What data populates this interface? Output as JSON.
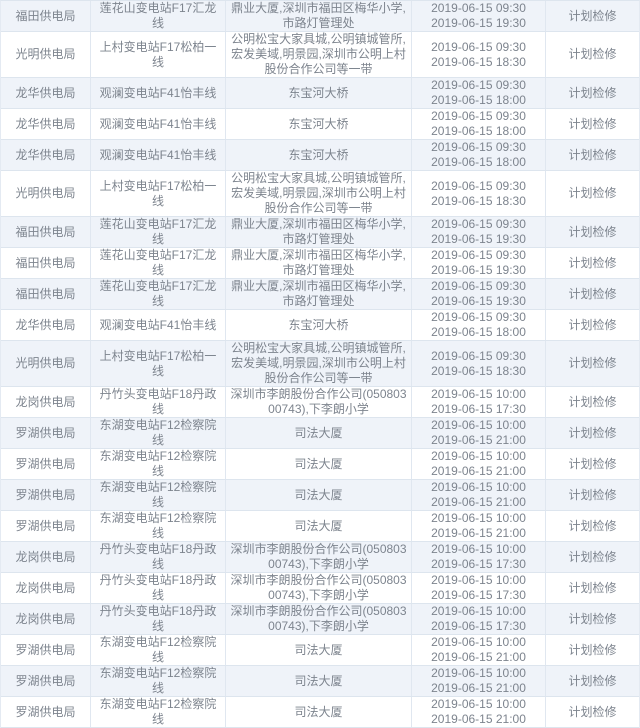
{
  "colors": {
    "row_stripe": "#eff3f9",
    "row_border": "#dde5ee",
    "text": "#7d848e"
  },
  "table": {
    "type_label_all_rows": "计划检修",
    "rows": [
      {
        "bureau": "福田供电局",
        "line": "莲花山变电站F17汇龙线",
        "area": "鼎业大厦,深圳市福田区梅华小学,市路灯管理处",
        "time_start": "2019-06-15 09:30",
        "time_end": "2019-06-15 19:30",
        "type": "计划检修"
      },
      {
        "bureau": "光明供电局",
        "line": "上村变电站F17松柏一线",
        "area": "公明松宝大家具城,公明镇城管所,宏发美域,明景园,深圳市公明上村股份合作公司等一带",
        "time_start": "2019-06-15 09:30",
        "time_end": "2019-06-15 18:30",
        "type": "计划检修"
      },
      {
        "bureau": "龙华供电局",
        "line": "观澜变电站F41怡丰线",
        "area": "东宝河大桥",
        "time_start": "2019-06-15 09:30",
        "time_end": "2019-06-15 18:00",
        "type": "计划检修"
      },
      {
        "bureau": "龙华供电局",
        "line": "观澜变电站F41怡丰线",
        "area": "东宝河大桥",
        "time_start": "2019-06-15 09:30",
        "time_end": "2019-06-15 18:00",
        "type": "计划检修"
      },
      {
        "bureau": "龙华供电局",
        "line": "观澜变电站F41怡丰线",
        "area": "东宝河大桥",
        "time_start": "2019-06-15 09:30",
        "time_end": "2019-06-15 18:00",
        "type": "计划检修"
      },
      {
        "bureau": "光明供电局",
        "line": "上村变电站F17松柏一线",
        "area": "公明松宝大家具城,公明镇城管所,宏发美域,明景园,深圳市公明上村股份合作公司等一带",
        "time_start": "2019-06-15 09:30",
        "time_end": "2019-06-15 18:30",
        "type": "计划检修"
      },
      {
        "bureau": "福田供电局",
        "line": "莲花山变电站F17汇龙线",
        "area": "鼎业大厦,深圳市福田区梅华小学,市路灯管理处",
        "time_start": "2019-06-15 09:30",
        "time_end": "2019-06-15 19:30",
        "type": "计划检修"
      },
      {
        "bureau": "福田供电局",
        "line": "莲花山变电站F17汇龙线",
        "area": "鼎业大厦,深圳市福田区梅华小学,市路灯管理处",
        "time_start": "2019-06-15 09:30",
        "time_end": "2019-06-15 19:30",
        "type": "计划检修"
      },
      {
        "bureau": "福田供电局",
        "line": "莲花山变电站F17汇龙线",
        "area": "鼎业大厦,深圳市福田区梅华小学,市路灯管理处",
        "time_start": "2019-06-15 09:30",
        "time_end": "2019-06-15 19:30",
        "type": "计划检修"
      },
      {
        "bureau": "龙华供电局",
        "line": "观澜变电站F41怡丰线",
        "area": "东宝河大桥",
        "time_start": "2019-06-15 09:30",
        "time_end": "2019-06-15 18:00",
        "type": "计划检修"
      },
      {
        "bureau": "光明供电局",
        "line": "上村变电站F17松柏一线",
        "area": "公明松宝大家具城,公明镇城管所,宏发美域,明景园,深圳市公明上村股份合作公司等一带",
        "time_start": "2019-06-15 09:30",
        "time_end": "2019-06-15 18:30",
        "type": "计划检修"
      },
      {
        "bureau": "龙岗供电局",
        "line": "丹竹头变电站F18丹政线",
        "area": "深圳市李朗股份合作公司(05080300743),下李朗小学",
        "time_start": "2019-06-15 10:00",
        "time_end": "2019-06-15 17:30",
        "type": "计划检修"
      },
      {
        "bureau": "罗湖供电局",
        "line": "东湖变电站F12检察院线",
        "area": "司法大厦",
        "time_start": "2019-06-15 10:00",
        "time_end": "2019-06-15 21:00",
        "type": "计划检修"
      },
      {
        "bureau": "罗湖供电局",
        "line": "东湖变电站F12检察院线",
        "area": "司法大厦",
        "time_start": "2019-06-15 10:00",
        "time_end": "2019-06-15 21:00",
        "type": "计划检修"
      },
      {
        "bureau": "罗湖供电局",
        "line": "东湖变电站F12检察院线",
        "area": "司法大厦",
        "time_start": "2019-06-15 10:00",
        "time_end": "2019-06-15 21:00",
        "type": "计划检修"
      },
      {
        "bureau": "罗湖供电局",
        "line": "东湖变电站F12检察院线",
        "area": "司法大厦",
        "time_start": "2019-06-15 10:00",
        "time_end": "2019-06-15 21:00",
        "type": "计划检修"
      },
      {
        "bureau": "龙岗供电局",
        "line": "丹竹头变电站F18丹政线",
        "area": "深圳市李朗股份合作公司(05080300743),下李朗小学",
        "time_start": "2019-06-15 10:00",
        "time_end": "2019-06-15 17:30",
        "type": "计划检修"
      },
      {
        "bureau": "龙岗供电局",
        "line": "丹竹头变电站F18丹政线",
        "area": "深圳市李朗股份合作公司(05080300743),下李朗小学",
        "time_start": "2019-06-15 10:00",
        "time_end": "2019-06-15 17:30",
        "type": "计划检修"
      },
      {
        "bureau": "龙岗供电局",
        "line": "丹竹头变电站F18丹政线",
        "area": "深圳市李朗股份合作公司(05080300743),下李朗小学",
        "time_start": "2019-06-15 10:00",
        "time_end": "2019-06-15 17:30",
        "type": "计划检修"
      },
      {
        "bureau": "罗湖供电局",
        "line": "东湖变电站F12检察院线",
        "area": "司法大厦",
        "time_start": "2019-06-15 10:00",
        "time_end": "2019-06-15 21:00",
        "type": "计划检修"
      },
      {
        "bureau": "罗湖供电局",
        "line": "东湖变电站F12检察院线",
        "area": "司法大厦",
        "time_start": "2019-06-15 10:00",
        "time_end": "2019-06-15 21:00",
        "type": "计划检修"
      },
      {
        "bureau": "罗湖供电局",
        "line": "东湖变电站F12检察院线",
        "area": "司法大厦",
        "time_start": "2019-06-15 10:00",
        "time_end": "2019-06-15 21:00",
        "type": "计划检修"
      }
    ]
  }
}
